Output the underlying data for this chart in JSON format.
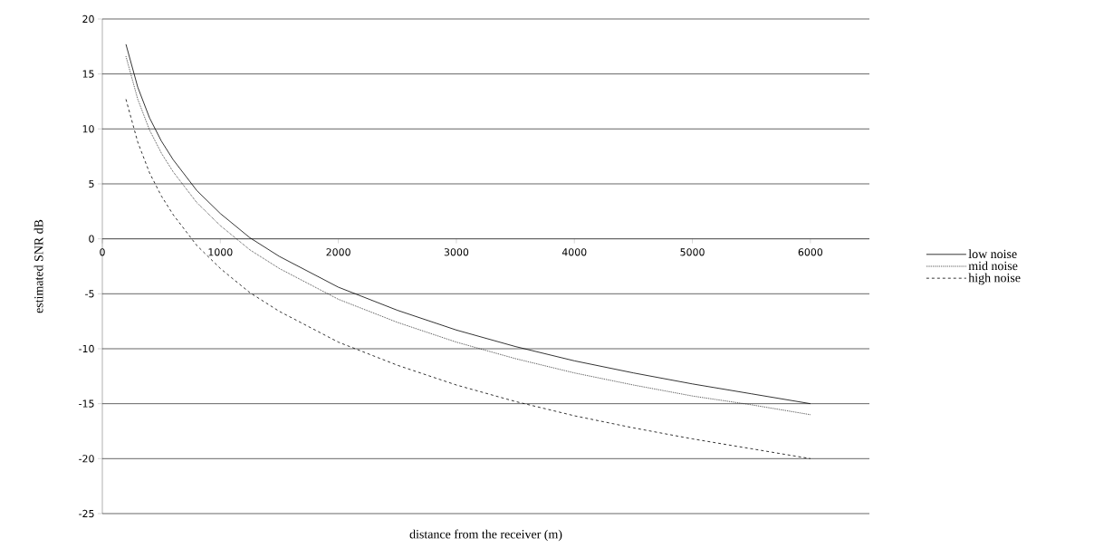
{
  "chart_data": {
    "type": "line",
    "xlabel": "distance from the receiver (m)",
    "ylabel": "estimated SNR dB",
    "x": [
      200,
      300,
      400,
      500,
      600,
      800,
      1000,
      1250,
      1500,
      2000,
      2500,
      3000,
      3500,
      4000,
      4500,
      5000,
      5500,
      6000
    ],
    "series": [
      {
        "name": "low noise",
        "color": "#000000",
        "line_style": "solid",
        "values": [
          17.7,
          13.8,
          11.0,
          8.9,
          7.2,
          4.4,
          2.3,
          0.1,
          -1.6,
          -4.4,
          -6.5,
          -8.3,
          -9.8,
          -11.1,
          -12.2,
          -13.2,
          -14.1,
          -15.0
        ]
      },
      {
        "name": "mid noise",
        "color": "#000000",
        "line_style": "dotted",
        "values": [
          16.6,
          12.7,
          9.9,
          7.8,
          6.1,
          3.3,
          1.2,
          -1.0,
          -2.7,
          -5.5,
          -7.6,
          -9.4,
          -10.9,
          -12.2,
          -13.3,
          -14.3,
          -15.1,
          -16.0
        ]
      },
      {
        "name": "high noise",
        "color": "#000000",
        "line_style": "dashed",
        "values": [
          12.7,
          8.8,
          6.0,
          3.9,
          2.2,
          -0.6,
          -2.7,
          -4.9,
          -6.6,
          -9.4,
          -11.5,
          -13.3,
          -14.8,
          -16.1,
          -17.2,
          -18.2,
          -19.1,
          -20.0
        ]
      }
    ],
    "xlim": [
      0,
      6500
    ],
    "xticks": [
      0,
      1000,
      2000,
      3000,
      4000,
      5000,
      6000
    ],
    "ylim": [
      -25,
      20
    ],
    "yticks": [
      -25,
      -20,
      -15,
      -10,
      -5,
      0,
      5,
      10,
      15,
      20
    ],
    "grid": "y",
    "legend": "right",
    "marker": "none"
  }
}
